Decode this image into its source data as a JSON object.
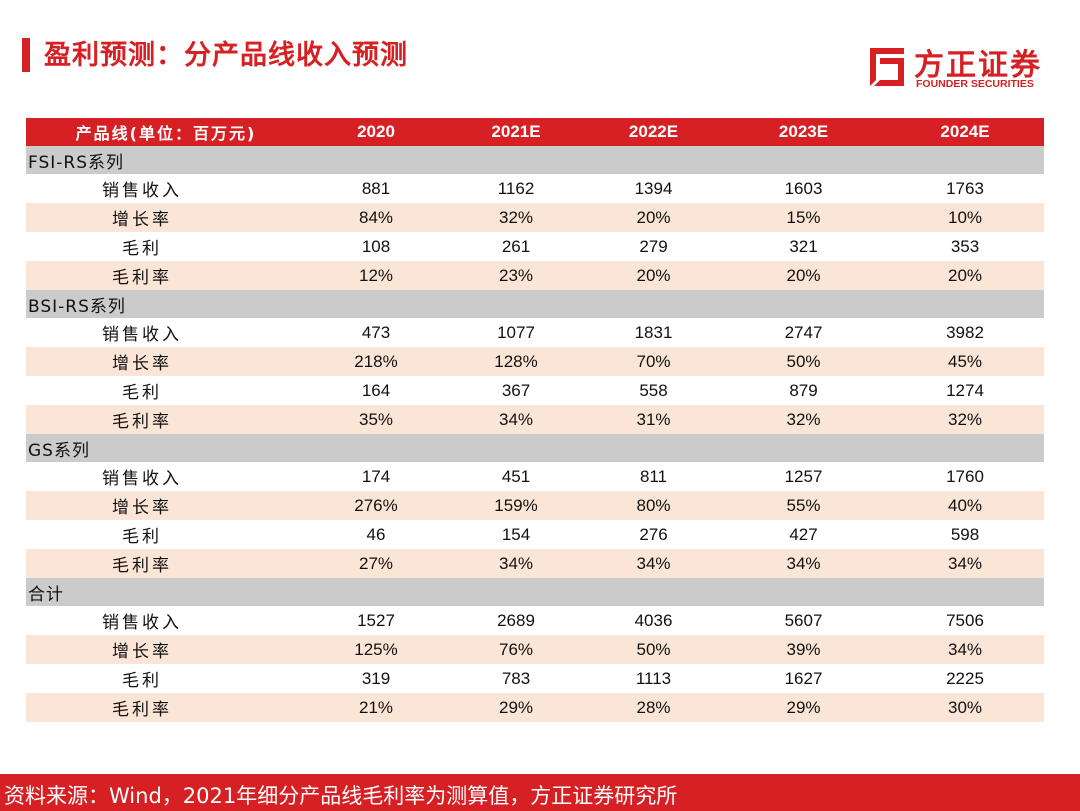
{
  "header": {
    "title": "盈利预测：分产品线收入预测",
    "logo_cn": "方正证券",
    "logo_en": "FOUNDER SECURITIES"
  },
  "table": {
    "headers": [
      "产品线(单位：百万元)",
      "2020",
      "2021E",
      "2022E",
      "2023E",
      "2024E"
    ],
    "groups": [
      {
        "name": "FSI-RS系列",
        "rows": [
          {
            "label": "销售收入",
            "values": [
              "881",
              "1162",
              "1394",
              "1603",
              "1763"
            ]
          },
          {
            "label": "增长率",
            "values": [
              "84%",
              "32%",
              "20%",
              "15%",
              "10%"
            ]
          },
          {
            "label": "毛利",
            "values": [
              "108",
              "261",
              "279",
              "321",
              "353"
            ]
          },
          {
            "label": "毛利率",
            "values": [
              "12%",
              "23%",
              "20%",
              "20%",
              "20%"
            ]
          }
        ]
      },
      {
        "name": "BSI-RS系列",
        "rows": [
          {
            "label": "销售收入",
            "values": [
              "473",
              "1077",
              "1831",
              "2747",
              "3982"
            ]
          },
          {
            "label": "增长率",
            "values": [
              "218%",
              "128%",
              "70%",
              "50%",
              "45%"
            ]
          },
          {
            "label": "毛利",
            "values": [
              "164",
              "367",
              "558",
              "879",
              "1274"
            ]
          },
          {
            "label": "毛利率",
            "values": [
              "35%",
              "34%",
              "31%",
              "32%",
              "32%"
            ]
          }
        ]
      },
      {
        "name": "GS系列",
        "rows": [
          {
            "label": "销售收入",
            "values": [
              "174",
              "451",
              "811",
              "1257",
              "1760"
            ]
          },
          {
            "label": "增长率",
            "values": [
              "276%",
              "159%",
              "80%",
              "55%",
              "40%"
            ]
          },
          {
            "label": "毛利",
            "values": [
              "46",
              "154",
              "276",
              "427",
              "598"
            ]
          },
          {
            "label": "毛利率",
            "values": [
              "27%",
              "34%",
              "34%",
              "34%",
              "34%"
            ]
          }
        ]
      },
      {
        "name": "合计",
        "rows": [
          {
            "label": "销售收入",
            "values": [
              "1527",
              "2689",
              "4036",
              "5607",
              "7506"
            ]
          },
          {
            "label": "增长率",
            "values": [
              "125%",
              "76%",
              "50%",
              "39%",
              "34%"
            ]
          },
          {
            "label": "毛利",
            "values": [
              "319",
              "783",
              "1113",
              "1627",
              "2225"
            ]
          },
          {
            "label": "毛利率",
            "values": [
              "21%",
              "29%",
              "28%",
              "29%",
              "30%"
            ]
          }
        ]
      }
    ]
  },
  "footer": {
    "source": "资料来源：Wind，2021年细分产品线毛利率为测算值，方正证券研究所"
  },
  "colors": {
    "accent": "#d62024",
    "group_row": "#cbcbcb",
    "shaded_row": "#fbe5d6"
  }
}
